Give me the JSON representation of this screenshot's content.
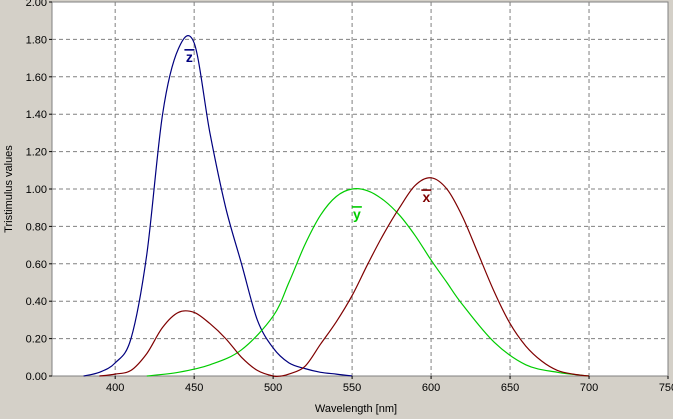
{
  "chart_data": {
    "type": "line",
    "xlabel": "Wavelength [nm]",
    "ylabel": "Tristimulus values",
    "xlim": [
      360,
      750
    ],
    "ylim": [
      0,
      2.0
    ],
    "x_ticks": [
      400,
      450,
      500,
      550,
      600,
      650,
      700,
      750
    ],
    "y_ticks": [
      0.0,
      0.2,
      0.4,
      0.6,
      0.8,
      1.0,
      1.2,
      1.4,
      1.6,
      1.8,
      2.0
    ],
    "x_tick_labels": [
      "400",
      "450",
      "500",
      "550",
      "600",
      "650",
      "700",
      "750"
    ],
    "y_tick_labels": [
      "0.00",
      "0.20",
      "0.40",
      "0.60",
      "0.80",
      "1.00",
      "1.20",
      "1.40",
      "1.60",
      "1.80",
      "2.00"
    ],
    "grid": true,
    "series": [
      {
        "name": "z",
        "label": "z",
        "color": "#00007f",
        "x": [
          380,
          390,
          400,
          410,
          420,
          430,
          440,
          450,
          460,
          470,
          480,
          490,
          500,
          510,
          520,
          530,
          540,
          550
        ],
        "y": [
          0.0,
          0.02,
          0.07,
          0.2,
          0.65,
          1.4,
          1.75,
          1.78,
          1.3,
          0.9,
          0.6,
          0.3,
          0.15,
          0.07,
          0.04,
          0.02,
          0.01,
          0.0
        ]
      },
      {
        "name": "y",
        "label": "y",
        "color": "#00cc00",
        "x": [
          420,
          440,
          460,
          480,
          500,
          510,
          520,
          530,
          540,
          550,
          560,
          570,
          580,
          590,
          600,
          610,
          620,
          640,
          660,
          680,
          700
        ],
        "y": [
          0.0,
          0.02,
          0.06,
          0.14,
          0.32,
          0.5,
          0.7,
          0.86,
          0.96,
          1.0,
          0.99,
          0.94,
          0.86,
          0.75,
          0.62,
          0.5,
          0.38,
          0.18,
          0.06,
          0.02,
          0.0
        ]
      },
      {
        "name": "x",
        "label": "x",
        "color": "#7f0000",
        "x": [
          390,
          400,
          410,
          420,
          430,
          440,
          450,
          460,
          470,
          480,
          490,
          500,
          505,
          510,
          520,
          530,
          540,
          550,
          560,
          570,
          580,
          590,
          600,
          610,
          620,
          630,
          640,
          650,
          660,
          670,
          680,
          690,
          700
        ],
        "y": [
          0.0,
          0.01,
          0.03,
          0.12,
          0.26,
          0.34,
          0.34,
          0.28,
          0.2,
          0.1,
          0.03,
          0.0,
          0.0,
          0.01,
          0.05,
          0.17,
          0.29,
          0.43,
          0.6,
          0.76,
          0.9,
          1.02,
          1.06,
          1.0,
          0.85,
          0.65,
          0.45,
          0.28,
          0.16,
          0.08,
          0.03,
          0.01,
          0.0
        ]
      }
    ],
    "annotations": [
      {
        "text": "z",
        "series": "z",
        "at_x": 447,
        "at_y": 1.68
      },
      {
        "text": "y",
        "series": "y",
        "at_x": 553,
        "at_y": 0.84
      },
      {
        "text": "x",
        "series": "x",
        "at_x": 597,
        "at_y": 0.93
      }
    ]
  }
}
